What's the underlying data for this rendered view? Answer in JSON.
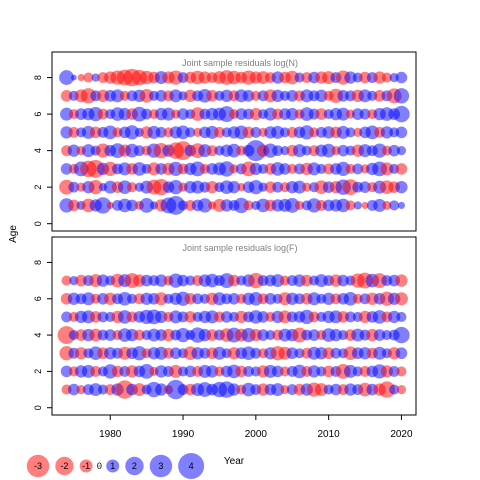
{
  "figure": {
    "ylabel": "Age",
    "xlabel": "Year"
  },
  "colors": {
    "negative": "#ff0000",
    "positive": "#0000ff",
    "frame": "#000000",
    "panel_title": "#808080"
  },
  "chart_data": [
    {
      "type": "scatter",
      "subtype": "bubble",
      "title": "Joint sample residuals log(N)",
      "xlim": [
        1972,
        2022
      ],
      "ylim": [
        -0.4,
        9.4
      ],
      "yticks": [
        0,
        2,
        4,
        6,
        8
      ],
      "ages": [
        1,
        2,
        3,
        4,
        5,
        6,
        7,
        8
      ],
      "years": [
        1974,
        2020
      ],
      "residuals_by_age": {
        "1": [
          1.2,
          -0.8,
          0.5,
          -1.1,
          0.9,
          1.6,
          -0.3,
          0.7,
          1.1,
          0.8,
          -0.5,
          1.3,
          0.4,
          -0.9,
          1.5,
          2.1,
          0.6,
          -0.7,
          0.8,
          1.2,
          -0.4,
          -1.0,
          0.9,
          0.7,
          1.4,
          -0.6,
          0.5,
          1.1,
          -0.8,
          0.9,
          1.0,
          1.3,
          -0.5,
          0.6,
          1.2,
          -0.7,
          0.8,
          0.9,
          1.1,
          -0.6,
          0.4,
          -0.3,
          0.7,
          1.0,
          -0.5,
          0.6,
          0.3
        ],
        "2": [
          -1.3,
          0.7,
          -0.5,
          0.9,
          -1.2,
          0.4,
          1.0,
          -0.8,
          1.1,
          -0.6,
          0.5,
          1.0,
          -1.3,
          -1.6,
          0.8,
          1.2,
          -0.5,
          0.9,
          1.0,
          0.7,
          -0.9,
          0.6,
          1.1,
          0.9,
          -0.4,
          0.8,
          1.2,
          0.5,
          -0.8,
          0.7,
          -0.6,
          0.9,
          1.0,
          -0.5,
          0.6,
          -1.1,
          0.8,
          -0.9,
          1.4,
          -1.5,
          0.7,
          0.8,
          -0.6,
          1.0,
          -1.1,
          -0.8,
          0.9
        ],
        "3": [
          0.8,
          -0.6,
          1.3,
          -1.6,
          -1.9,
          0.9,
          -1.2,
          0.7,
          1.0,
          -0.8,
          1.1,
          0.6,
          -1.0,
          0.8,
          -0.9,
          1.2,
          -0.7,
          0.9,
          1.3,
          -0.6,
          0.8,
          1.0,
          1.4,
          -0.5,
          0.7,
          -1.3,
          0.9,
          0.6,
          -0.8,
          1.1,
          0.8,
          -0.6,
          0.7,
          -0.9,
          1.0,
          0.6,
          -0.7,
          0.8,
          1.2,
          -0.6,
          0.7,
          -0.5,
          0.9,
          1.3,
          -1.0,
          0.6,
          -0.8
        ],
        "4": [
          -0.7,
          0.9,
          -0.5,
          1.0,
          0.6,
          -1.2,
          0.8,
          1.3,
          -0.9,
          1.1,
          0.7,
          -0.6,
          1.2,
          -1.4,
          0.9,
          -1.6,
          -2.1,
          0.8,
          -1.3,
          1.0,
          -0.7,
          0.6,
          0.9,
          1.1,
          -0.6,
          0.8,
          2.6,
          -0.9,
          1.2,
          0.7,
          0.5,
          -0.8,
          1.0,
          0.6,
          -0.7,
          0.9,
          1.1,
          -0.5,
          0.8,
          0.6,
          -0.9,
          1.0,
          0.7,
          1.2,
          -0.6,
          0.8,
          0.5
        ],
        "5": [
          0.9,
          -0.7,
          0.6,
          1.0,
          -0.8,
          0.7,
          1.1,
          -0.6,
          0.8,
          1.2,
          0.5,
          -0.9,
          1.0,
          0.7,
          -0.6,
          0.9,
          1.1,
          0.6,
          -0.5,
          0.8,
          1.0,
          -0.7,
          0.6,
          0.9,
          1.1,
          -0.8,
          0.7,
          -0.5,
          0.9,
          1.0,
          0.6,
          -0.7,
          0.8,
          1.2,
          -0.6,
          0.7,
          0.9,
          -0.8,
          1.0,
          0.6,
          -0.5,
          0.8,
          1.1,
          -0.7,
          0.9,
          0.6,
          0.8
        ],
        "6": [
          1.0,
          -0.6,
          0.8,
          0.9,
          1.2,
          -0.7,
          0.6,
          1.1,
          0.9,
          -0.8,
          1.3,
          0.7,
          -0.6,
          0.9,
          1.0,
          -0.5,
          0.8,
          0.6,
          -1.1,
          0.7,
          0.9,
          1.0,
          1.5,
          -0.6,
          0.8,
          0.7,
          -0.9,
          0.6,
          1.0,
          -0.7,
          0.8,
          0.9,
          -0.6,
          1.1,
          0.7,
          -0.8,
          0.6,
          0.9,
          1.0,
          -0.5,
          0.8,
          0.7,
          -0.6,
          0.9,
          1.1,
          0.8,
          1.6
        ],
        "7": [
          -0.8,
          0.6,
          -1.0,
          -1.4,
          0.7,
          -0.9,
          0.8,
          1.0,
          -0.6,
          0.7,
          0.9,
          -1.1,
          0.6,
          0.8,
          -0.7,
          1.0,
          0.5,
          -0.9,
          0.7,
          1.1,
          -0.8,
          0.6,
          0.9,
          -0.7,
          1.0,
          0.8,
          -0.6,
          0.7,
          -1.0,
          0.9,
          0.6,
          0.8,
          -0.7,
          1.0,
          0.7,
          0.9,
          -0.6,
          -1.2,
          0.8,
          0.7,
          -0.9,
          1.0,
          0.6,
          -0.8,
          0.7,
          -1.3,
          1.4
        ],
        "8": [
          1.3,
          0.2,
          -0.3,
          -0.6,
          0.4,
          -0.7,
          -0.9,
          -1.2,
          -1.5,
          -1.8,
          -1.4,
          -1.1,
          -0.8,
          1.0,
          -0.9,
          -1.2,
          0.7,
          -0.8,
          -1.1,
          -0.9,
          -0.7,
          -1.0,
          -1.3,
          -1.1,
          -0.8,
          -1.2,
          -0.9,
          -1.0,
          -0.7,
          0.9,
          -0.8,
          -1.1,
          0.6,
          -0.7,
          0.8,
          -0.9,
          -1.0,
          0.7,
          -1.2,
          0.9,
          0.6,
          -0.8,
          0.7,
          -0.9,
          -0.6,
          0.5,
          0.8
        ]
      }
    },
    {
      "type": "scatter",
      "subtype": "bubble",
      "title": "Joint sample residuals log(F)",
      "xlim": [
        1972,
        2022
      ],
      "ylim": [
        -0.4,
        9.4
      ],
      "yticks": [
        0,
        2,
        4,
        6,
        8
      ],
      "xticks": [
        1980,
        1990,
        2000,
        2010,
        2020
      ],
      "ages": [
        1,
        2,
        3,
        4,
        5,
        6,
        7
      ],
      "years": [
        1974,
        2020
      ],
      "residuals_by_age": {
        "1": [
          -0.6,
          0.8,
          -0.5,
          0.7,
          1.0,
          0.6,
          -0.7,
          0.9,
          -2.0,
          0.8,
          -1.0,
          0.6,
          1.4,
          0.9,
          -0.5,
          2.2,
          0.7,
          -0.8,
          1.0,
          1.3,
          0.8,
          1.4,
          1.6,
          0.9,
          -0.6,
          1.1,
          0.7,
          -0.9,
          0.8,
          1.0,
          -0.5,
          0.7,
          -0.8,
          0.9,
          -1.2,
          -1.0,
          0.6,
          0.8,
          -0.7,
          0.9,
          0.7,
          -1.1,
          0.8,
          -0.9,
          -1.6,
          0.6,
          -0.5
        ],
        "2": [
          0.8,
          -0.6,
          0.9,
          1.0,
          -0.7,
          0.6,
          1.2,
          -0.8,
          0.7,
          -0.9,
          0.8,
          1.3,
          -0.5,
          0.9,
          0.7,
          -1.0,
          0.6,
          0.8,
          -0.7,
          1.0,
          0.9,
          -0.6,
          0.8,
          1.1,
          -0.8,
          0.7,
          0.6,
          -0.9,
          1.0,
          0.8,
          -0.6,
          0.7,
          1.1,
          -0.7,
          0.9,
          0.6,
          -0.8,
          0.7,
          -1.3,
          1.0,
          0.6,
          -0.7,
          0.8,
          1.2,
          -0.9,
          0.7,
          -0.6
        ],
        "3": [
          -1.2,
          0.7,
          -0.9,
          0.6,
          1.1,
          -0.8,
          0.9,
          0.7,
          -1.0,
          0.8,
          1.2,
          -0.6,
          0.9,
          1.0,
          -0.7,
          0.8,
          0.6,
          -1.1,
          0.9,
          0.7,
          -0.8,
          1.0,
          0.6,
          -0.9,
          0.8,
          1.1,
          0.7,
          -0.6,
          0.9,
          -1.2,
          -1.0,
          0.8,
          0.6,
          -0.7,
          1.0,
          0.9,
          -0.8,
          0.7,
          0.6,
          -1.1,
          0.8,
          0.9,
          -0.7,
          1.0,
          0.6,
          -0.9,
          0.8
        ],
        "4": [
          -1.9,
          0.6,
          -0.8,
          0.9,
          -1.0,
          0.7,
          0.8,
          -0.6,
          1.1,
          0.9,
          -0.7,
          0.6,
          1.0,
          0.8,
          -0.9,
          0.7,
          1.2,
          0.6,
          1.4,
          0.9,
          -0.8,
          0.7,
          -1.1,
          1.3,
          -1.0,
          1.2,
          -0.9,
          0.8,
          0.6,
          -0.7,
          1.0,
          0.9,
          -1.3,
          0.7,
          0.8,
          -0.6,
          1.1,
          0.9,
          0.6,
          -0.8,
          1.0,
          0.7,
          -0.9,
          0.8,
          0.6,
          0.7,
          1.6
        ],
        "5": [
          0.7,
          -0.6,
          0.9,
          1.0,
          -0.8,
          0.7,
          0.6,
          -0.9,
          1.1,
          -0.7,
          0.8,
          1.2,
          1.3,
          0.9,
          -0.6,
          1.0,
          0.7,
          -0.8,
          0.6,
          0.9,
          1.0,
          -0.7,
          0.8,
          0.6,
          -0.9,
          0.7,
          1.1,
          0.8,
          -0.6,
          0.9,
          -1.0,
          0.7,
          0.8,
          1.2,
          -0.7,
          0.6,
          0.9,
          1.0,
          -0.8,
          0.7,
          0.6,
          -0.9,
          0.8,
          1.1,
          -0.7,
          0.9,
          0.6
        ],
        "6": [
          -0.8,
          0.9,
          0.7,
          1.0,
          -0.6,
          0.8,
          -0.9,
          0.7,
          1.1,
          0.6,
          -0.7,
          0.9,
          0.8,
          -1.0,
          0.6,
          0.9,
          1.2,
          -0.8,
          0.7,
          0.6,
          -0.9,
          1.0,
          0.7,
          0.8,
          -0.6,
          0.9,
          1.1,
          -0.7,
          0.8,
          0.6,
          -1.0,
          0.9,
          0.7,
          -0.8,
          1.0,
          0.6,
          0.9,
          -0.7,
          0.8,
          1.1,
          -0.6,
          0.7,
          -0.9,
          0.8,
          -1.2,
          0.9,
          -1.0
        ],
        "7": [
          -0.6,
          0.5,
          -0.8,
          0.7,
          -1.0,
          0.9,
          0.6,
          -1.1,
          1.0,
          -1.3,
          -0.9,
          0.8,
          0.7,
          0.9,
          -0.6,
          1.2,
          0.8,
          0.6,
          -0.7,
          0.9,
          1.1,
          0.7,
          1.3,
          -0.8,
          0.6,
          0.9,
          -1.4,
          0.7,
          0.8,
          1.0,
          -0.6,
          0.7,
          0.9,
          -0.8,
          0.6,
          1.0,
          0.7,
          -0.9,
          0.8,
          0.6,
          -1.2,
          -1.5,
          1.1,
          -1.3,
          0.7,
          0.8,
          -0.9
        ]
      }
    }
  ],
  "legend": {
    "placement": "bottom-left",
    "entries": [
      {
        "label": "-3",
        "value": -3
      },
      {
        "label": "-2",
        "value": -2
      },
      {
        "label": "-1",
        "value": -1
      },
      {
        "label": "0",
        "value": 0
      },
      {
        "label": "1",
        "value": 1
      },
      {
        "label": "2",
        "value": 2
      },
      {
        "label": "3",
        "value": 3
      },
      {
        "label": "4",
        "value": 4
      }
    ]
  }
}
